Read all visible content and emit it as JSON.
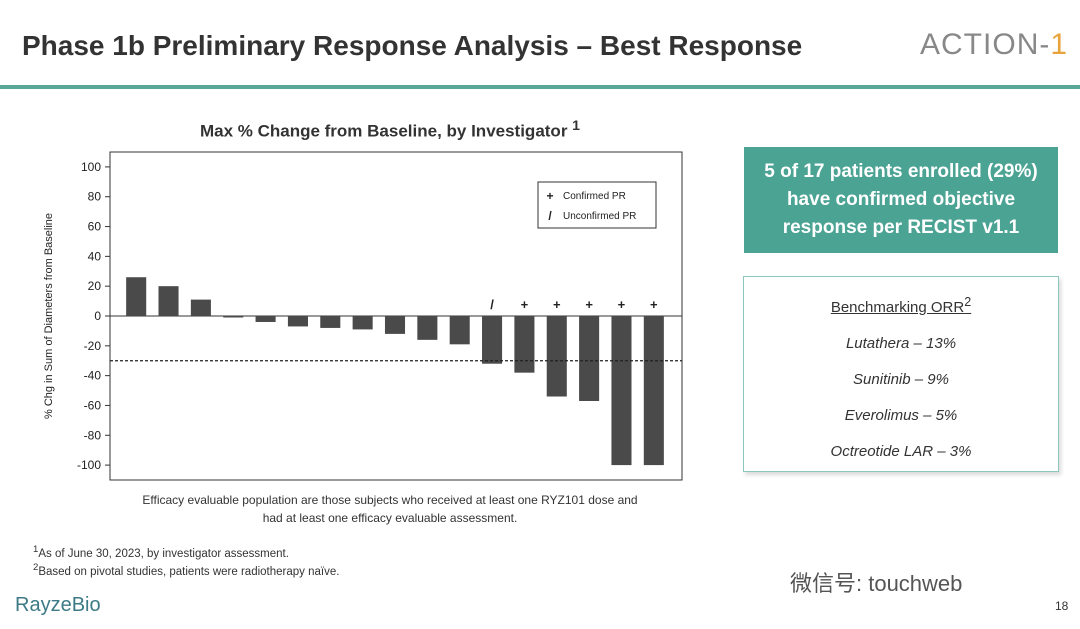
{
  "header": {
    "title": "Phase 1b Preliminary Response Analysis – Best Response",
    "logo_left": "ACTI",
    "logo_mid": "O",
    "logo_right": "N-",
    "logo_num": "1",
    "accent_color": "#5aa89a"
  },
  "chart_data": {
    "type": "bar",
    "title": "Max % Change from Baseline, by Investigator",
    "title_sup": "1",
    "ylabel": "% Chg in Sum of Diameters from Baseline",
    "xlabel": "",
    "ylim": [
      -110,
      110
    ],
    "yticks": [
      100,
      80,
      60,
      40,
      20,
      0,
      -20,
      -40,
      -60,
      -80,
      -100
    ],
    "reference_line": -30,
    "values": [
      26,
      20,
      11,
      -1,
      -4,
      -7,
      -8,
      -9,
      -12,
      -16,
      -19,
      -32,
      -38,
      -54,
      -57,
      -100,
      -100
    ],
    "markers": [
      "",
      "",
      "",
      "",
      "",
      "",
      "",
      "",
      "",
      "",
      "",
      "/",
      "+",
      "+",
      "+",
      "+",
      "+"
    ],
    "legend": [
      {
        "symbol": "+",
        "label": "Confirmed PR"
      },
      {
        "symbol": "/",
        "label": "Unconfirmed PR"
      }
    ],
    "legend_position": "top-right",
    "bar_color": "#4a4a4a"
  },
  "callout": {
    "line1": "5 of 17 patients enrolled (29%)",
    "line2": "have confirmed objective",
    "line3": "response per RECIST v1.1",
    "color": "#4ba394"
  },
  "benchmark": {
    "title": "Benchmarking ORR",
    "title_sup": "2",
    "items": [
      "Lutathera – 13%",
      "Sunitinib – 9%",
      "Everolimus – 5%",
      "Octreotide LAR – 3%"
    ]
  },
  "caption": {
    "line1": "Efficacy evaluable population are those subjects who received at least one RYZ101 dose and",
    "line2": "had at least one efficacy evaluable assessment."
  },
  "footnotes": {
    "fn1_sup": "1",
    "fn1": "As of June 30, 2023, by investigator assessment.",
    "fn2_sup": "2",
    "fn2": "Based on pivotal studies, patients were radiotherapy naïve."
  },
  "brand": "RayzeBio",
  "watermark": "微信号: touchweb",
  "page_number": "18"
}
